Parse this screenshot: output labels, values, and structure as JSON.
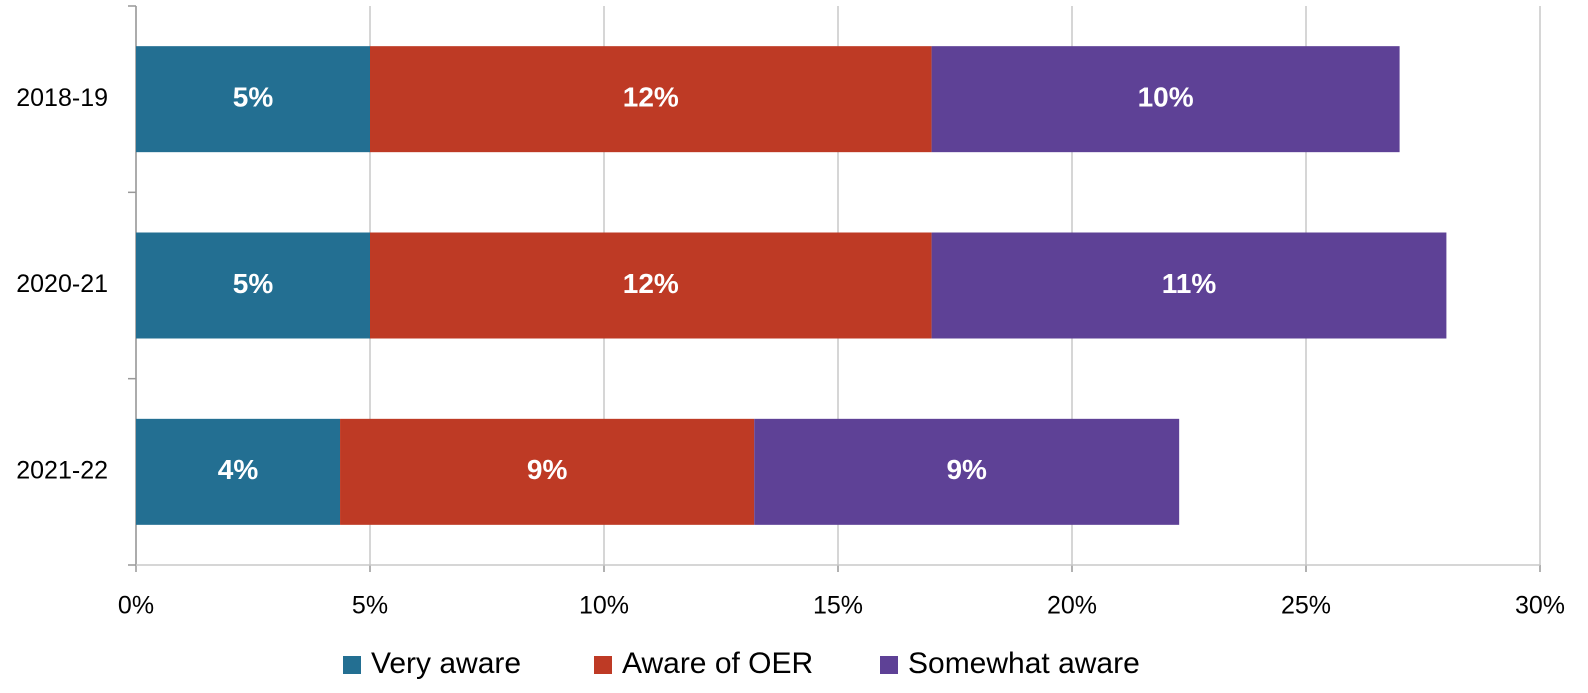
{
  "chart_data": {
    "type": "stacked-horizontal-bar",
    "categories": [
      "2018-19",
      "2020-21",
      "2021-22"
    ],
    "series": [
      {
        "name": "Very aware",
        "color": "#236f92",
        "values": [
          5,
          5,
          4.36
        ],
        "value_labels": [
          "5%",
          "5%",
          "4%"
        ]
      },
      {
        "name": "Aware of OER",
        "color": "#be3a25",
        "values": [
          12,
          12,
          8.85
        ],
        "value_labels": [
          "12%",
          "12%",
          "9%"
        ]
      },
      {
        "name": "Somewhat aware",
        "color": "#5e4196",
        "values": [
          10,
          11,
          9.08
        ],
        "value_labels": [
          "10%",
          "11%",
          "9%"
        ]
      }
    ],
    "xlim": [
      0,
      30
    ],
    "xticks": [
      {
        "value": 0,
        "label": "0%"
      },
      {
        "value": 5,
        "label": "5%"
      },
      {
        "value": 10,
        "label": "10%"
      },
      {
        "value": 15,
        "label": "15%"
      },
      {
        "value": 20,
        "label": "20%"
      },
      {
        "value": 25,
        "label": "25%"
      },
      {
        "value": 30,
        "label": "30%"
      }
    ],
    "grid": true,
    "legend": "bottom"
  }
}
